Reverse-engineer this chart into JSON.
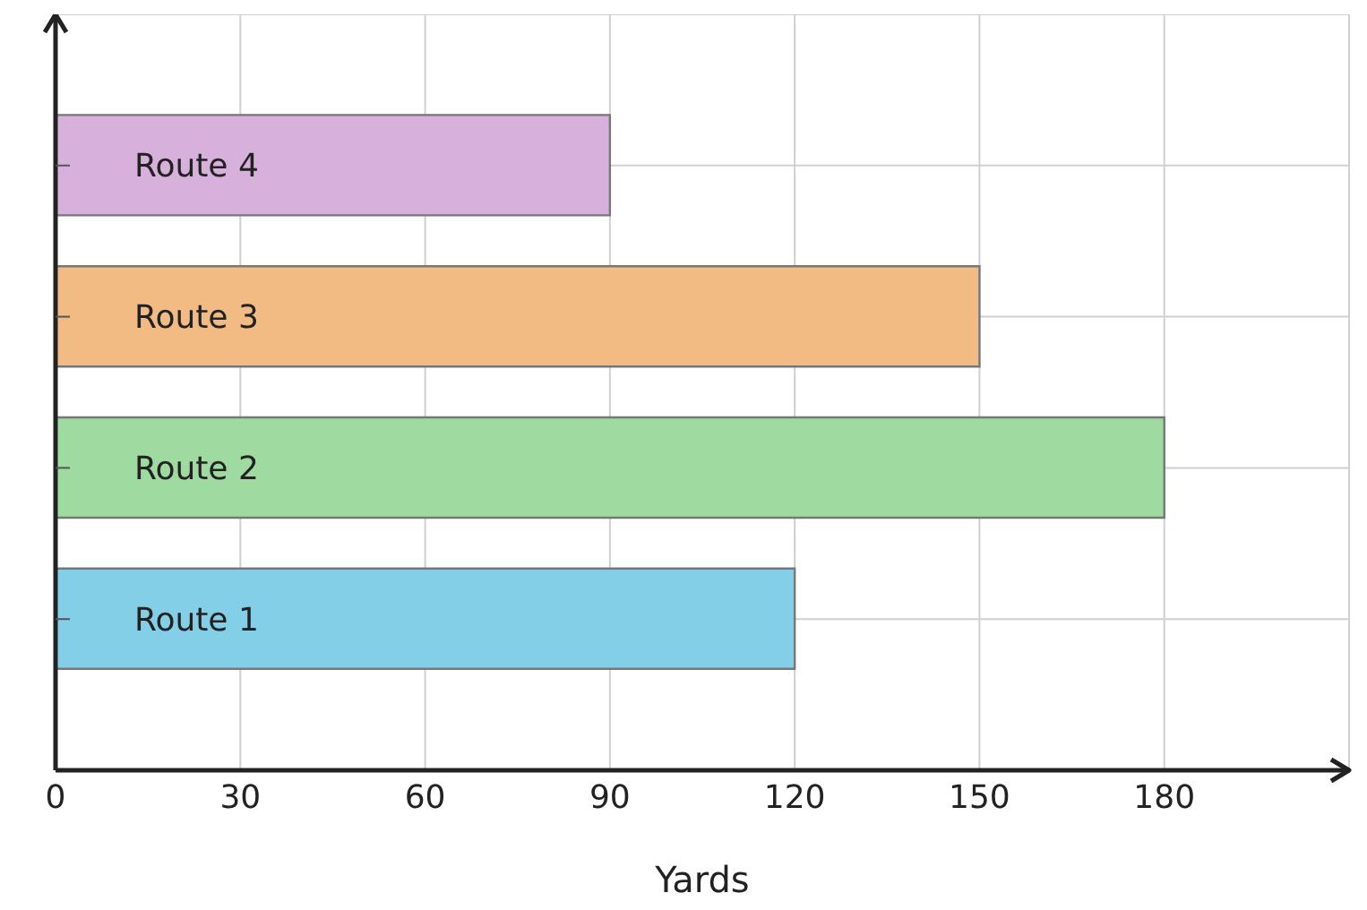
{
  "chart_data": {
    "type": "bar",
    "orientation": "horizontal",
    "categories": [
      "Route 4",
      "Route 3",
      "Route 2",
      "Route 1"
    ],
    "values": [
      90,
      150,
      180,
      120
    ],
    "colors": [
      "#d7b0dc",
      "#f2bb84",
      "#9fdaa0",
      "#83cfe8"
    ],
    "xlabel": "Yards",
    "xlim": [
      0,
      210
    ],
    "xticks": [
      0,
      30,
      60,
      90,
      120,
      150,
      180
    ],
    "grid": true
  }
}
